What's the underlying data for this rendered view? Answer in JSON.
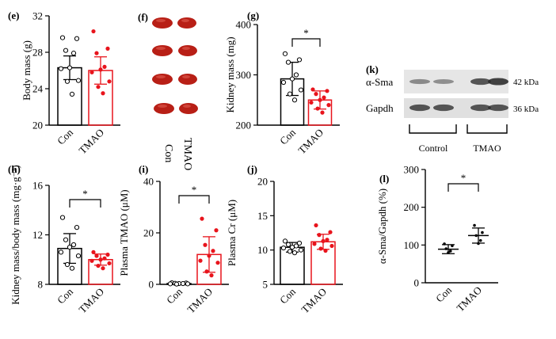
{
  "colors": {
    "con": "#000000",
    "tmao": "#e8141c",
    "kidney": "#b81f16",
    "band": "#2a2a2a"
  },
  "chart_data": [
    {
      "panel": "(e)",
      "type": "bar",
      "ylabel": "Body mass (g)",
      "ylim": [
        20,
        32
      ],
      "yticks": [
        20,
        24,
        28,
        32
      ],
      "categories": [
        "Con",
        "TMAO"
      ],
      "means": [
        26.3,
        26.0
      ],
      "sd": [
        1.3,
        1.5
      ],
      "points": [
        [
          29.6,
          29.5,
          28.2,
          27.9,
          26.3,
          26.2,
          24.9,
          24.8,
          23.4
        ],
        [
          30.3,
          28.4,
          27.9,
          26.4,
          26.1,
          25.8,
          24.8,
          24.2,
          23.5
        ]
      ],
      "sig": ""
    },
    {
      "panel": "(g)",
      "type": "bar",
      "ylabel": "Kidney mass (mg)",
      "ylim": [
        200,
        400
      ],
      "yticks": [
        200,
        300,
        400
      ],
      "categories": [
        "Con",
        "TMAO"
      ],
      "means": [
        292,
        250
      ],
      "sd": [
        33,
        18
      ],
      "points": [
        [
          342,
          330,
          325,
          300,
          292,
          285,
          270,
          262,
          250
        ],
        [
          271,
          268,
          262,
          255,
          250,
          245,
          240,
          233,
          225
        ]
      ],
      "sig": "*"
    },
    {
      "panel": "(h)",
      "type": "bar",
      "ylabel": "Kidney mass/body mass (mg·g⁻¹)",
      "ylim": [
        8,
        16
      ],
      "yticks": [
        8,
        12,
        16
      ],
      "categories": [
        "Con",
        "TMAO"
      ],
      "means": [
        10.9,
        10.0
      ],
      "sd": [
        1.2,
        0.45
      ],
      "points": [
        [
          13.4,
          12.6,
          11.6,
          11.2,
          11.0,
          10.6,
          10.3,
          9.6,
          9.3
        ],
        [
          10.6,
          10.4,
          10.3,
          10.1,
          10.0,
          9.9,
          9.7,
          9.5,
          9.3
        ]
      ],
      "sig": "*"
    },
    {
      "panel": "(i)",
      "type": "bar",
      "ylabel": "Plasma TMAO (μM)",
      "ylim": [
        0,
        40
      ],
      "yticks": [
        0,
        20,
        40
      ],
      "categories": [
        "Con",
        "TMAO"
      ],
      "means": [
        0.3,
        11.6
      ],
      "sd": [
        0.2,
        6.9
      ],
      "points": [
        [
          0.6,
          0.5,
          0.4,
          0.3,
          0.3,
          0.2,
          0.2,
          0.1
        ],
        [
          25.5,
          21.0,
          15.3,
          13.0,
          11.1,
          9.2,
          8.4,
          5.0,
          3.5
        ]
      ],
      "sig": "*"
    },
    {
      "panel": "(j)",
      "type": "bar",
      "ylabel": "Plasma Cr (μM)",
      "ylim": [
        5,
        20
      ],
      "yticks": [
        5,
        10,
        15,
        20
      ],
      "categories": [
        "Con",
        "TMAO"
      ],
      "means": [
        10.4,
        11.2
      ],
      "sd": [
        0.7,
        1.1
      ],
      "points": [
        [
          11.3,
          11.0,
          10.8,
          10.6,
          10.4,
          10.3,
          10.0,
          9.8,
          9.6
        ],
        [
          13.6,
          12.6,
          12.2,
          11.5,
          11.3,
          10.9,
          10.6,
          10.2,
          9.9
        ]
      ],
      "sig": ""
    },
    {
      "panel": "(l)",
      "type": "scatter",
      "ylabel": "α-Sma/Gapdh (%)",
      "ylim": [
        0,
        300
      ],
      "yticks": [
        0,
        100,
        200,
        300
      ],
      "categories": [
        "Con",
        "TMAO"
      ],
      "means": [
        89,
        125
      ],
      "sd": [
        12,
        20
      ],
      "points": [
        [
          103,
          98,
          90,
          84,
          80
        ],
        [
          152,
          133,
          125,
          112,
          104
        ]
      ],
      "sig": "*"
    }
  ],
  "panel_f": {
    "label": "(f)",
    "groups": [
      "Con",
      "TMAO"
    ]
  },
  "panel_k": {
    "label": "(k)",
    "rows": [
      {
        "name": "α-Sma",
        "size": "42 kDa",
        "intensities": [
          0.35,
          0.3,
          0.75,
          0.9
        ]
      },
      {
        "name": "Gapdh",
        "size": "36 kDa",
        "intensities": [
          0.75,
          0.75,
          0.75,
          0.75
        ]
      }
    ],
    "groups": [
      "Control",
      "TMAO"
    ]
  }
}
